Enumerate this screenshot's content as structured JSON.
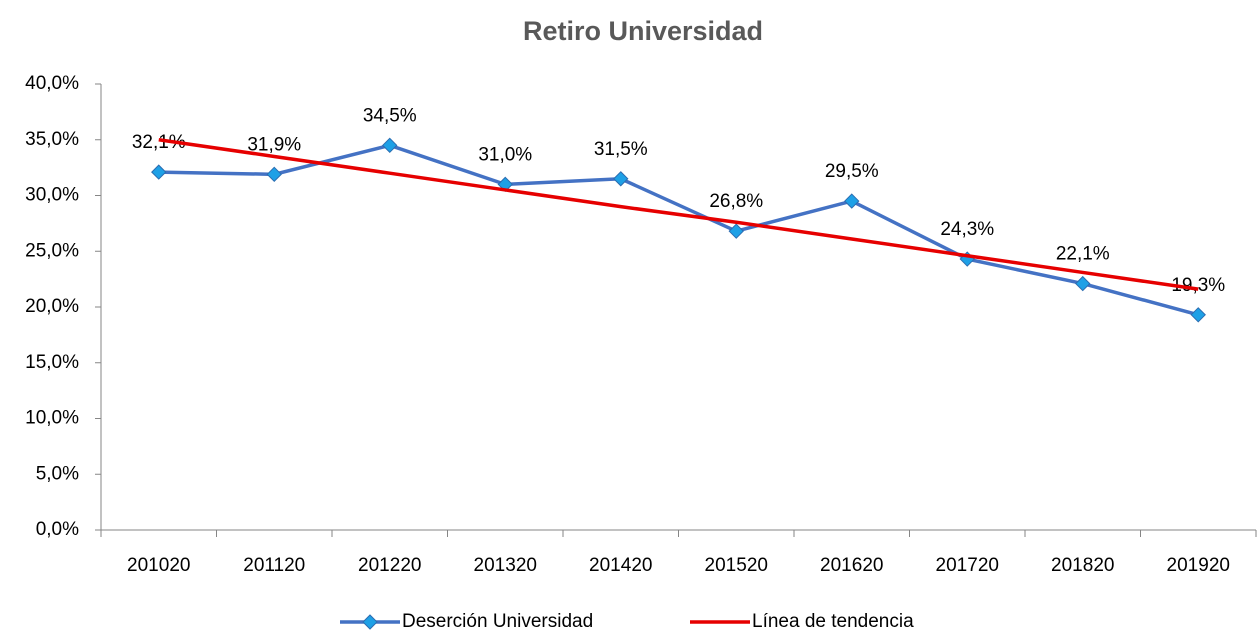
{
  "chart_data": {
    "type": "line",
    "title": "Retiro Universidad",
    "categories": [
      "201020",
      "201120",
      "201220",
      "201320",
      "201420",
      "201520",
      "201620",
      "201720",
      "201820",
      "201920"
    ],
    "series": [
      {
        "name": "Deserción Universidad",
        "color": "#4472c4",
        "marker_color": "#1ea0e6",
        "values": [
          32.1,
          31.9,
          34.5,
          31.0,
          31.5,
          26.8,
          29.5,
          24.3,
          22.1,
          19.3
        ],
        "value_labels": [
          "32,1%",
          "31,9%",
          "34,5%",
          "31,0%",
          "31,5%",
          "26,8%",
          "29,5%",
          "24,3%",
          "22,1%",
          "19,3%"
        ]
      },
      {
        "name": "Línea de tendencia",
        "color": "#e60000",
        "values": [
          35.0,
          33.5,
          32.0,
          30.5,
          29.0,
          27.6,
          26.1,
          24.6,
          23.1,
          21.6
        ]
      }
    ],
    "ylim": [
      0,
      40
    ],
    "yticks": [
      {
        "value": 0,
        "label": "0,0%"
      },
      {
        "value": 5,
        "label": "5,0%"
      },
      {
        "value": 10,
        "label": "10,0%"
      },
      {
        "value": 15,
        "label": "15,0%"
      },
      {
        "value": 20,
        "label": "20,0%"
      },
      {
        "value": 25,
        "label": "25,0%"
      },
      {
        "value": 30,
        "label": "30,0%"
      },
      {
        "value": 35,
        "label": "35,0%"
      },
      {
        "value": 40,
        "label": "40,0%"
      }
    ],
    "grid": false,
    "legend": "bottom"
  }
}
